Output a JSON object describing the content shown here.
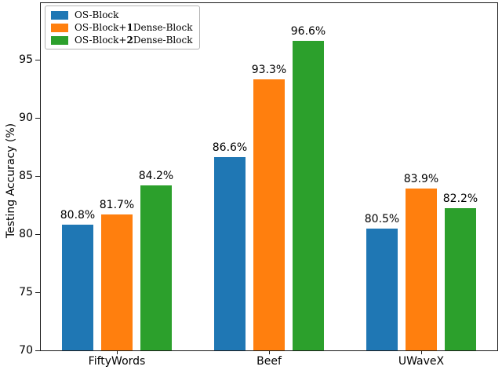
{
  "figure": {
    "background": "#ffffff"
  },
  "colors": {
    "axis": "#1a1a1a",
    "text": "#000000",
    "legend_border": "#b3b3b3"
  },
  "chart_data": {
    "type": "bar",
    "title": "",
    "xlabel": "",
    "ylabel": "Testing Accuracy (%)",
    "categories": [
      "FiftyWords",
      "Beef",
      "UWaveX"
    ],
    "series": [
      {
        "name": "OS-Block",
        "color": "#1f77b4",
        "values": [
          80.8,
          86.6,
          80.5
        ]
      },
      {
        "name": "OS-Block+1Dense-Block",
        "color": "#ff7f0e",
        "values": [
          81.7,
          93.3,
          83.9
        ]
      },
      {
        "name": "OS-Block+2Dense-Block",
        "color": "#2ca02c",
        "values": [
          84.2,
          96.6,
          82.2
        ]
      }
    ],
    "bar_value_labels": [
      [
        "80.8%",
        "86.6%",
        "80.5%"
      ],
      [
        "81.7%",
        "93.3%",
        "83.9%"
      ],
      [
        "84.2%",
        "96.6%",
        "82.2%"
      ]
    ],
    "yticks": [
      70,
      75,
      80,
      85,
      90,
      95
    ],
    "ylim": [
      70,
      99.85
    ],
    "grid": false,
    "legend_position": "upper left",
    "value_label_suffix": "%"
  }
}
